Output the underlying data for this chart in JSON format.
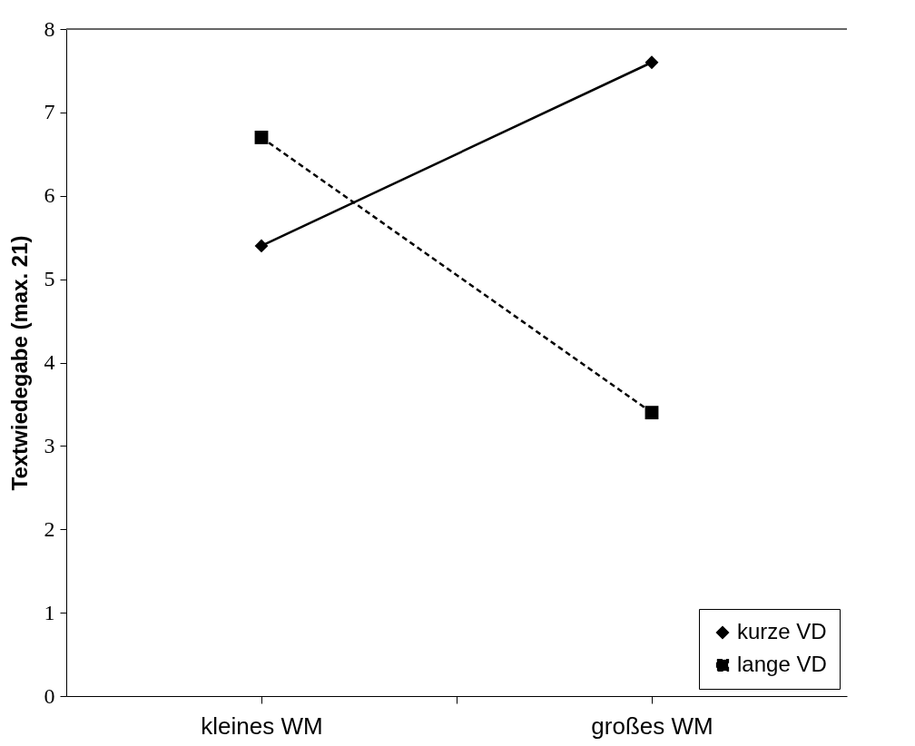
{
  "chart_data": {
    "type": "line",
    "ylabel": "Textwiedegabe (max. 21)",
    "categories": [
      "kleines WM",
      "großes WM"
    ],
    "series": [
      {
        "name": "kurze VD",
        "color": "#000000",
        "values": [
          5.4,
          7.6
        ],
        "marker": "diamond",
        "line_style": "solid"
      },
      {
        "name": "lange VD",
        "color": "#000000",
        "values": [
          6.7,
          3.4
        ],
        "marker": "square",
        "line_style": "dashed"
      }
    ],
    "ylim": [
      0,
      8
    ],
    "yticks": [
      0,
      1,
      2,
      3,
      4,
      5,
      6,
      7,
      8
    ],
    "grid": false,
    "legend": "bottom right"
  }
}
